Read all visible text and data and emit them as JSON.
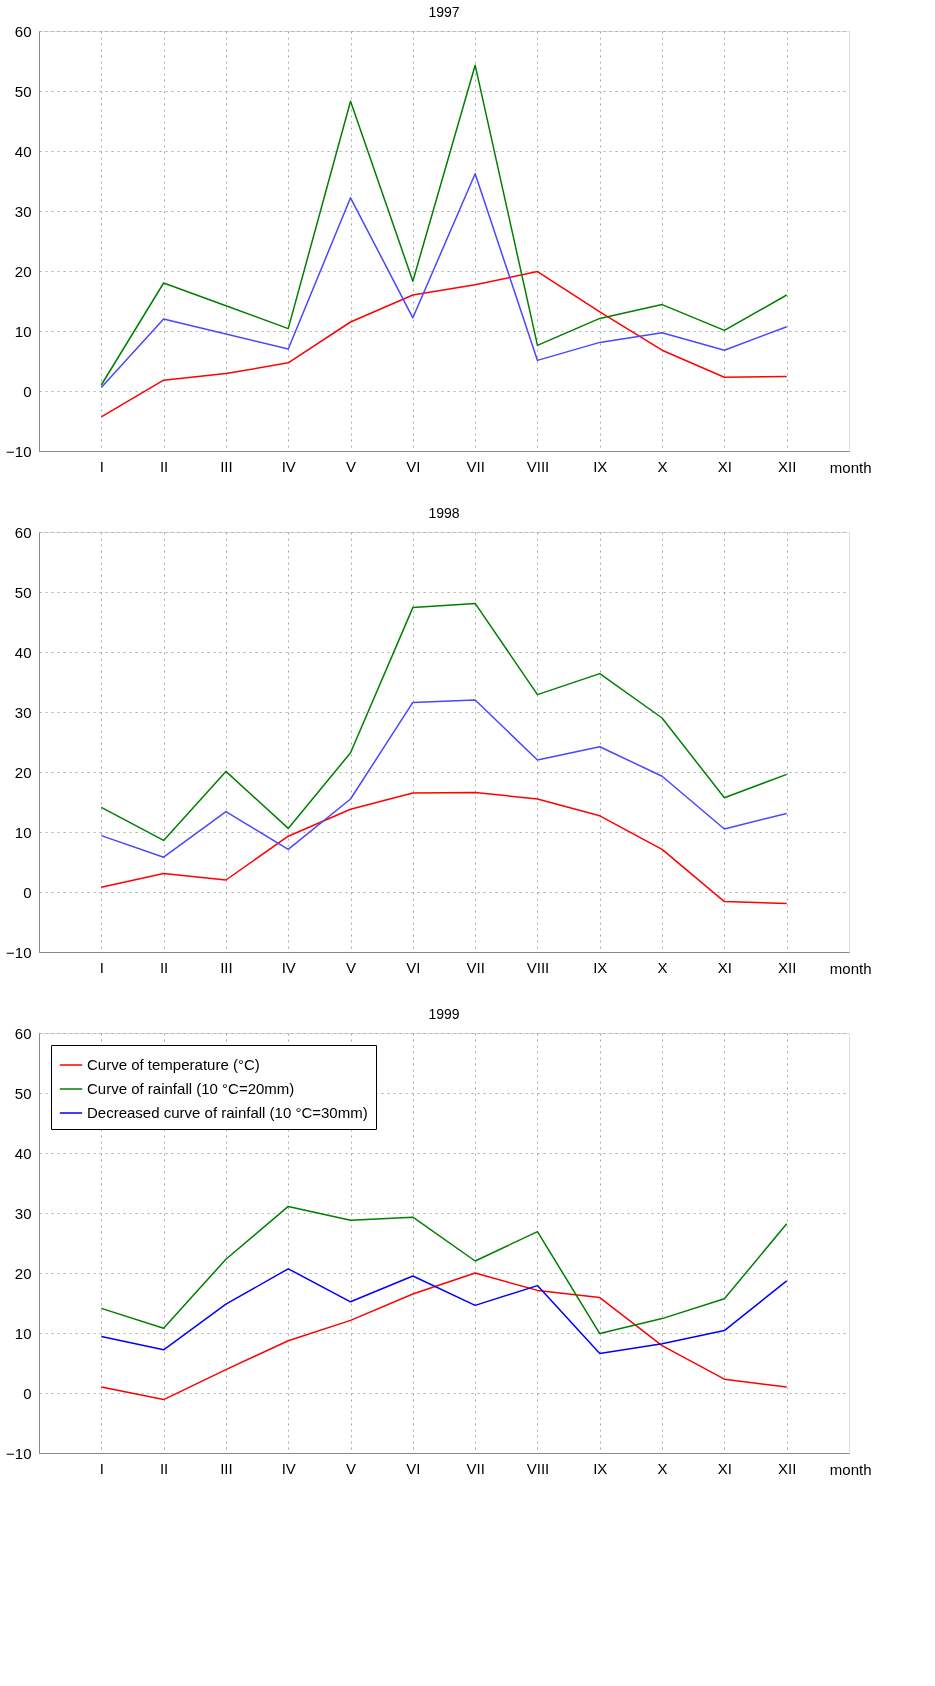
{
  "chart_data": [
    {
      "type": "line",
      "title": "1997",
      "xlabel": "month",
      "categories": [
        "I",
        "II",
        "III",
        "IV",
        "V",
        "VI",
        "VII",
        "VIII",
        "IX",
        "X",
        "XI",
        "XII"
      ],
      "ylim": [
        -10,
        60
      ],
      "yticks": [
        -10,
        0,
        10,
        20,
        30,
        40,
        50,
        60
      ],
      "grid": true,
      "legend": false,
      "line_style": "solid",
      "marker": "none",
      "series": [
        {
          "color": "#ff0000",
          "values": [
            -4.3,
            1.8,
            2.9,
            4.7,
            11.5,
            16,
            17.7,
            19.9,
            13.2,
            6.8,
            2.3,
            2.4
          ]
        },
        {
          "color": "#007f00",
          "values": [
            1.0,
            18,
            14.2,
            10.4,
            48.3,
            18.3,
            54.3,
            7.6,
            12.1,
            14.4,
            10.1,
            16
          ]
        },
        {
          "color": "#4848ff",
          "values": [
            0.6,
            12,
            9.5,
            7,
            32.2,
            12.2,
            36.2,
            5.1,
            8.1,
            9.7,
            6.8,
            10.7
          ]
        }
      ]
    },
    {
      "type": "line",
      "title": "1998",
      "xlabel": "month",
      "categories": [
        "I",
        "II",
        "III",
        "IV",
        "V",
        "VI",
        "VII",
        "VIII",
        "IX",
        "X",
        "XI",
        "XII"
      ],
      "ylim": [
        -10,
        60
      ],
      "yticks": [
        -10,
        0,
        10,
        20,
        30,
        40,
        50,
        60
      ],
      "grid": true,
      "legend": false,
      "line_style": "solid",
      "marker": "none",
      "series": [
        {
          "color": "#ff0000",
          "values": [
            0.8,
            3.1,
            2.0,
            9.3,
            13.8,
            16.5,
            16.6,
            15.5,
            12.7,
            7.1,
            -1.6,
            -1.9
          ]
        },
        {
          "color": "#007f00",
          "values": [
            14.1,
            8.6,
            20.1,
            10.6,
            23.2,
            47.4,
            48.1,
            32.9,
            36.4,
            29.0,
            15.7,
            19.6
          ]
        },
        {
          "color": "#4848ff",
          "values": [
            9.4,
            5.8,
            13.4,
            7.1,
            15.5,
            31.6,
            32.0,
            22.0,
            24.2,
            19.3,
            10.5,
            13.1
          ]
        }
      ]
    },
    {
      "type": "line",
      "title": "1999",
      "xlabel": "month",
      "categories": [
        "I",
        "II",
        "III",
        "IV",
        "V",
        "VI",
        "VII",
        "VIII",
        "IX",
        "X",
        "XI",
        "XII"
      ],
      "ylim": [
        -10,
        60
      ],
      "yticks": [
        -10,
        0,
        10,
        20,
        30,
        40,
        50,
        60
      ],
      "grid": true,
      "legend": "top left",
      "line_style": "solid",
      "marker": "none",
      "series": [
        {
          "name": "Curve of temperature (°C)",
          "color": "#ff0000",
          "values": [
            1.0,
            -1.1,
            3.9,
            8.7,
            12.1,
            16.5,
            20.0,
            17.1,
            15.9,
            7.9,
            2.3,
            1.0
          ]
        },
        {
          "name": "Curve of rainfall (10 °C=20mm)",
          "color": "#007f00",
          "values": [
            14.1,
            10.8,
            22.3,
            31.1,
            28.8,
            29.3,
            22.0,
            26.9,
            9.9,
            12.4,
            15.7,
            28.2
          ]
        },
        {
          "name": "Decreased curve of rainfall (10 °C=30mm)",
          "color": "#0000ff",
          "values": [
            9.4,
            7.2,
            14.8,
            20.7,
            15.2,
            19.5,
            14.6,
            17.9,
            6.6,
            8.2,
            10.4,
            18.7
          ]
        }
      ]
    }
  ]
}
